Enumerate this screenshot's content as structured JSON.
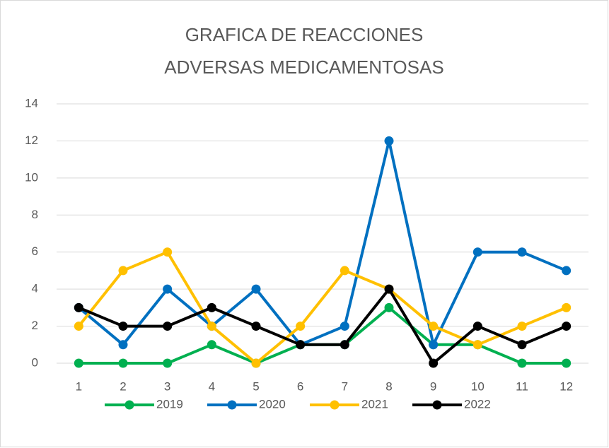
{
  "chart_data": {
    "type": "line",
    "title": "GRAFICA DE REACCIONES ADVERSAS MEDICAMENTOSAS",
    "categories": [
      "1",
      "2",
      "3",
      "4",
      "5",
      "6",
      "7",
      "8",
      "9",
      "10",
      "11",
      "12"
    ],
    "series": [
      {
        "name": "2019",
        "color": "#00b050",
        "values": [
          0,
          0,
          0,
          1,
          0,
          1,
          1,
          3,
          1,
          1,
          0,
          0
        ]
      },
      {
        "name": "2020",
        "color": "#0070c0",
        "values": [
          3,
          1,
          4,
          2,
          4,
          1,
          2,
          12,
          1,
          6,
          6,
          5
        ]
      },
      {
        "name": "2021",
        "color": "#ffc000",
        "values": [
          2,
          5,
          6,
          2,
          0,
          2,
          5,
          4,
          2,
          1,
          2,
          3
        ]
      },
      {
        "name": "2022",
        "color": "#000000",
        "values": [
          3,
          2,
          2,
          3,
          2,
          1,
          1,
          4,
          0,
          2,
          1,
          2
        ]
      }
    ],
    "ylim": [
      0,
      14
    ],
    "yticks": [
      0,
      2,
      4,
      6,
      8,
      10,
      12,
      14
    ],
    "grid": true,
    "legend": "bottom"
  }
}
